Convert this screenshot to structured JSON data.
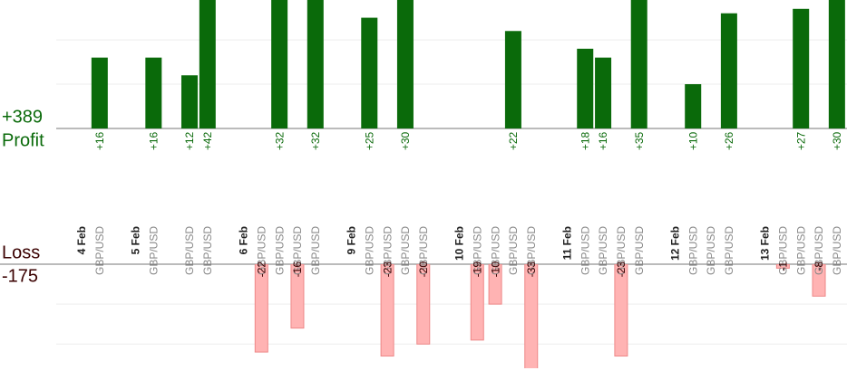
{
  "chart_data": {
    "type": "bar",
    "profit": {
      "label": "Profit",
      "total": "+389",
      "color": "#0a6a0a",
      "ylim": [
        0,
        29
      ],
      "grid": [
        10,
        20
      ]
    },
    "loss": {
      "label": "Loss",
      "total": "-175",
      "color": "#ffb3b3",
      "ylim": [
        -29,
        0
      ],
      "grid": [
        -10,
        -20
      ]
    },
    "columns": [
      {
        "date": "4 Feb"
      },
      {
        "pair": "GBP/USD",
        "value": 16,
        "value_label": "+16"
      },
      {
        "date": "5 Feb"
      },
      {
        "pair": "GBP/USD",
        "value": 16,
        "value_label": "+16"
      },
      {
        "pair": "GBP/USD",
        "value": 12,
        "value_label": "+12"
      },
      {
        "pair": "GBP/USD",
        "value": 42,
        "value_label": "+42"
      },
      {
        "date": "6 Feb"
      },
      {
        "pair": "GBP/USD",
        "value": -22
      },
      {
        "pair": "GBP/USD",
        "value": 32,
        "value_label": "+32"
      },
      {
        "pair": "GBP/USD",
        "value": -16
      },
      {
        "pair": "GBP/USD",
        "value": 32,
        "value_label": "+32"
      },
      {
        "date": "9 Feb"
      },
      {
        "pair": "GBP/USD",
        "value": 25,
        "value_label": "+25"
      },
      {
        "pair": "GBP/USD",
        "value": -23
      },
      {
        "pair": "GBP/USD",
        "value": 30,
        "value_label": "+30"
      },
      {
        "pair": "GBP/USD",
        "value": -20
      },
      {
        "date": "10 Feb"
      },
      {
        "pair": "GBP/USD",
        "value": -19
      },
      {
        "pair": "GBP/USD",
        "value": -10
      },
      {
        "pair": "GBP/USD",
        "value": 22,
        "value_label": "+22"
      },
      {
        "pair": "GBP/USD",
        "value": -33
      },
      {
        "date": "11 Feb"
      },
      {
        "pair": "GBP/USD",
        "value": 18,
        "value_label": "+18"
      },
      {
        "pair": "GBP/USD",
        "value": 16,
        "value_label": "+16"
      },
      {
        "pair": "GBP/USD",
        "value": -23
      },
      {
        "pair": "GBP/USD",
        "value": 35,
        "value_label": "+35"
      },
      {
        "date": "12 Feb"
      },
      {
        "pair": "GBP/USD",
        "value": 10,
        "value_label": "+10"
      },
      {
        "pair": "GBP/USD"
      },
      {
        "pair": "GBP/USD",
        "value": 26,
        "value_label": "+26"
      },
      {
        "date": "13 Feb"
      },
      {
        "pair": "GBP/USD",
        "value": -1
      },
      {
        "pair": "GBP/USD",
        "value": 27,
        "value_label": "+27"
      },
      {
        "pair": "GBP/USD",
        "value": -8
      },
      {
        "pair": "GBP/USD",
        "value": 30,
        "value_label": "+30"
      }
    ]
  }
}
